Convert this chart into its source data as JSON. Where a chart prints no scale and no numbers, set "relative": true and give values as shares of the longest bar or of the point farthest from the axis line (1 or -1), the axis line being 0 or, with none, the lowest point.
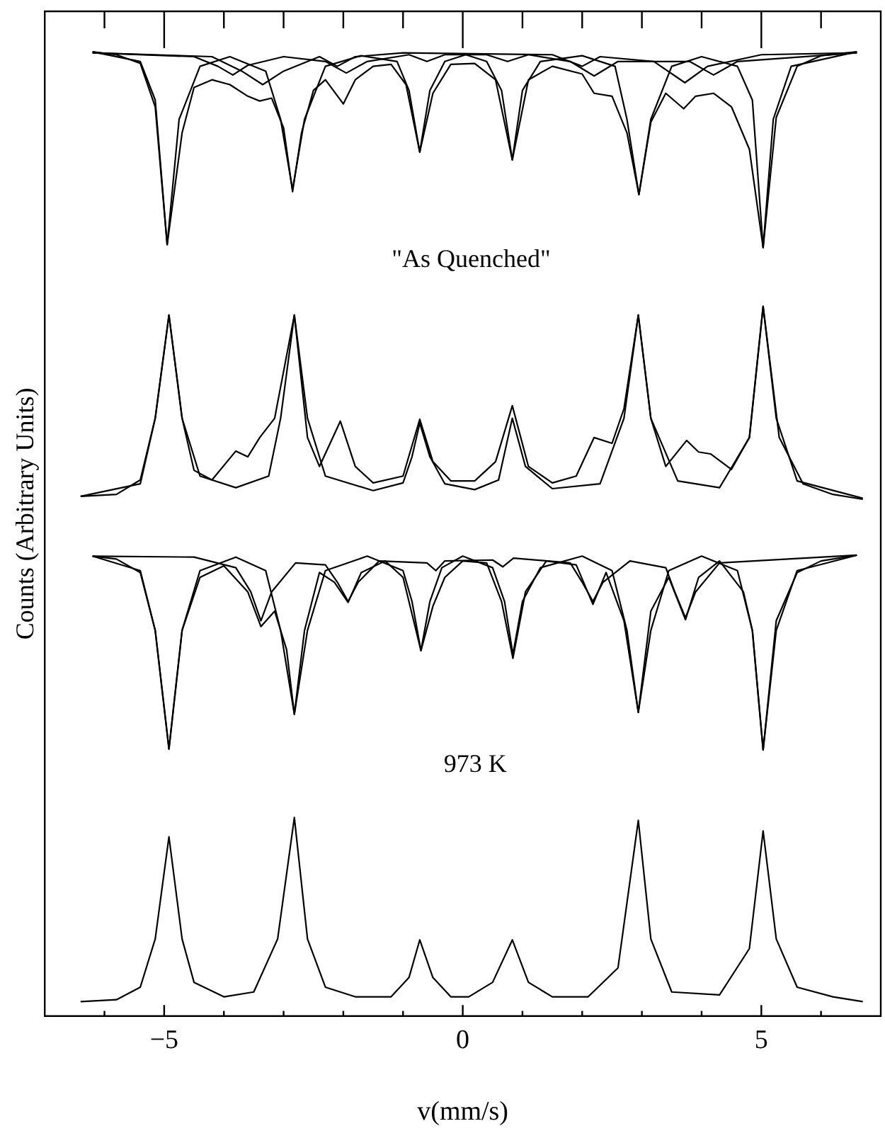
{
  "chart_data": {
    "type": "line",
    "relative": true,
    "xlabel": "v(mm/s)",
    "ylabel": "Counts (Arbitrary Units)",
    "xlim": [
      -7,
      7
    ],
    "xticks": [
      {
        "value": -6,
        "label": null
      },
      -5,
      {
        "value": -4,
        "label": null
      },
      {
        "value": -3,
        "label": null
      },
      {
        "value": -2,
        "label": null
      },
      {
        "value": -1,
        "label": null
      },
      0,
      {
        "value": 1,
        "label": null
      },
      {
        "value": 2,
        "label": null
      },
      {
        "value": 3,
        "label": null
      },
      {
        "value": 4,
        "label": null
      },
      5,
      {
        "value": 6,
        "label": null
      }
    ],
    "grid": false,
    "legend": false,
    "marker": "none",
    "line_style": "solid",
    "annotations": [
      "\"As Quenched\"",
      "973 K"
    ],
    "series": [
      {
        "color": "#000000",
        "x": [
          -6.2,
          -5.8,
          -5.4,
          -5.15,
          -4.95,
          -4.7,
          -4.5,
          -4.2,
          -3.9,
          -3.6,
          -3.4,
          -3.2,
          -3.0,
          -2.85,
          -2.7,
          -2.5,
          -2.3,
          -2.0,
          -1.8,
          -1.5,
          -1.2,
          -0.95,
          -0.72,
          -0.5,
          -0.2,
          0.2,
          0.55,
          0.83,
          1.1,
          1.5,
          2.0,
          2.2,
          2.5,
          2.75,
          2.95,
          3.15,
          3.4,
          3.7,
          3.9,
          4.2,
          4.5,
          4.8,
          5.03,
          5.25,
          5.6,
          6.0,
          6.6
        ],
        "values": [
          1.0,
          0.997,
          0.988,
          0.943,
          0.8,
          0.916,
          0.963,
          0.971,
          0.966,
          0.954,
          0.949,
          0.952,
          0.921,
          0.855,
          0.916,
          0.96,
          0.971,
          0.946,
          0.971,
          0.985,
          0.987,
          0.966,
          0.896,
          0.957,
          0.987,
          0.988,
          0.971,
          0.888,
          0.971,
          0.985,
          0.977,
          0.957,
          0.954,
          0.916,
          0.852,
          0.927,
          0.957,
          0.941,
          0.954,
          0.957,
          0.943,
          0.899,
          0.797,
          0.932,
          0.985,
          0.996,
          1.0
        ]
      },
      {
        "color": "#000000",
        "x": [
          -6.2,
          -5.4,
          -5.15,
          -4.95,
          -4.75,
          -4.4,
          -3.9,
          -3.3,
          -3.05,
          -2.85,
          -2.65,
          -2.3,
          -1.7,
          -1.1,
          -0.9,
          -0.72,
          -0.55,
          -0.3,
          0.05,
          0.4,
          0.65,
          0.83,
          1.0,
          1.3,
          2.0,
          2.55,
          2.75,
          2.95,
          3.15,
          3.5,
          4.0,
          4.6,
          4.85,
          5.03,
          5.2,
          5.5,
          6.6
        ],
        "values": [
          1.0,
          0.99,
          0.95,
          0.8,
          0.93,
          0.985,
          0.995,
          0.98,
          0.93,
          0.857,
          0.93,
          0.985,
          0.996,
          0.99,
          0.96,
          0.896,
          0.96,
          0.99,
          0.997,
          0.99,
          0.96,
          0.888,
          0.96,
          0.99,
          0.996,
          0.985,
          0.93,
          0.852,
          0.93,
          0.985,
          0.995,
          0.985,
          0.95,
          0.797,
          0.93,
          0.985,
          1.0
        ]
      },
      {
        "color": "#000000",
        "x": [
          -6.2,
          -4.5,
          -4.1,
          -3.85,
          -3.6,
          -3.0,
          -2.3,
          -1.95,
          -1.6,
          -0.9,
          -0.6,
          -0.3,
          0.4,
          0.75,
          1.1,
          1.8,
          2.2,
          2.6,
          3.8,
          4.2,
          4.6,
          6.6
        ],
        "values": [
          0.999,
          0.995,
          0.985,
          0.976,
          0.986,
          0.995,
          0.99,
          0.978,
          0.99,
          0.997,
          0.99,
          0.997,
          0.997,
          0.99,
          0.997,
          0.99,
          0.975,
          0.99,
          0.99,
          0.976,
          0.99,
          0.999
        ]
      },
      {
        "color": "#000000",
        "x": [
          -6.2,
          -4.2,
          -3.7,
          -3.35,
          -3.0,
          -2.4,
          -2.1,
          -1.8,
          -1.0,
          1.5,
          2.0,
          2.3,
          3.2,
          3.72,
          4.1,
          5.0,
          6.6
        ],
        "values": [
          0.999,
          0.995,
          0.98,
          0.966,
          0.98,
          0.995,
          0.985,
          0.995,
          0.999,
          0.997,
          0.985,
          0.995,
          0.99,
          0.968,
          0.985,
          0.997,
          0.999
        ]
      },
      {
        "color": "#000000",
        "x": [
          -6.4,
          -5.8,
          -5.4,
          -5.15,
          -4.92,
          -4.7,
          -4.5,
          -4.2,
          -3.8,
          -3.6,
          -3.4,
          -3.15,
          -2.82,
          -2.6,
          -2.4,
          -2.05,
          -1.8,
          -1.5,
          -1.0,
          -0.72,
          -0.5,
          -0.2,
          0.2,
          0.55,
          0.83,
          1.1,
          1.5,
          1.9,
          2.2,
          2.5,
          2.7,
          2.94,
          3.15,
          3.4,
          3.75,
          3.95,
          4.15,
          4.5,
          4.8,
          5.03,
          5.3,
          5.7,
          6.2,
          6.7
        ],
        "values": [
          0.539,
          0.541,
          0.556,
          0.62,
          0.727,
          0.62,
          0.566,
          0.556,
          0.586,
          0.58,
          0.6,
          0.62,
          0.727,
          0.6,
          0.57,
          0.617,
          0.57,
          0.553,
          0.56,
          0.619,
          0.575,
          0.555,
          0.555,
          0.575,
          0.633,
          0.57,
          0.553,
          0.56,
          0.6,
          0.594,
          0.63,
          0.727,
          0.62,
          0.57,
          0.597,
          0.585,
          0.583,
          0.567,
          0.6,
          0.736,
          0.6,
          0.552,
          0.541,
          0.536
        ]
      },
      {
        "color": "#000000",
        "x": [
          -6.4,
          -5.4,
          -5.15,
          -4.92,
          -4.7,
          -4.4,
          -3.8,
          -3.25,
          -3.05,
          -2.82,
          -2.6,
          -2.3,
          -1.5,
          -1.0,
          -0.85,
          -0.72,
          -0.55,
          -0.3,
          0.2,
          0.6,
          0.83,
          1.05,
          1.5,
          2.3,
          2.7,
          2.94,
          3.15,
          3.6,
          4.3,
          4.8,
          5.03,
          5.25,
          5.6,
          6.7
        ],
        "values": [
          0.539,
          0.552,
          0.62,
          0.727,
          0.62,
          0.56,
          0.548,
          0.56,
          0.62,
          0.727,
          0.62,
          0.56,
          0.545,
          0.553,
          0.58,
          0.615,
          0.58,
          0.552,
          0.546,
          0.556,
          0.62,
          0.57,
          0.547,
          0.552,
          0.62,
          0.727,
          0.62,
          0.555,
          0.548,
          0.6,
          0.736,
          0.62,
          0.555,
          0.537
        ]
      },
      {
        "color": "#000000",
        "x": [
          -6.2,
          -5.8,
          -5.4,
          -5.15,
          -4.92,
          -4.7,
          -4.4,
          -4.0,
          -3.6,
          -3.38,
          -3.15,
          -2.95,
          -2.82,
          -2.65,
          -2.4,
          -2.15,
          -1.92,
          -1.7,
          -1.3,
          -1.0,
          -0.7,
          -0.5,
          -0.3,
          0.0,
          0.4,
          0.65,
          0.84,
          1.05,
          1.4,
          1.9,
          2.18,
          2.4,
          2.7,
          2.94,
          3.15,
          3.45,
          3.73,
          3.95,
          4.3,
          4.7,
          4.85,
          5.03,
          5.25,
          5.6,
          6.0,
          6.6
        ],
        "values": [
          0.477,
          0.474,
          0.46,
          0.4,
          0.277,
          0.4,
          0.455,
          0.467,
          0.44,
          0.404,
          0.42,
          0.38,
          0.313,
          0.4,
          0.46,
          0.45,
          0.429,
          0.46,
          0.472,
          0.455,
          0.379,
          0.425,
          0.455,
          0.472,
          0.47,
          0.43,
          0.371,
          0.44,
          0.472,
          0.468,
          0.427,
          0.46,
          0.41,
          0.315,
          0.42,
          0.455,
          0.411,
          0.455,
          0.472,
          0.44,
          0.4,
          0.276,
          0.41,
          0.46,
          0.472,
          0.478
        ]
      },
      {
        "color": "#000000",
        "x": [
          -6.2,
          -5.4,
          -5.15,
          -4.92,
          -4.7,
          -4.4,
          -3.8,
          -3.3,
          -3.05,
          -2.82,
          -2.6,
          -2.3,
          -1.6,
          -1.0,
          -0.85,
          -0.7,
          -0.55,
          -0.35,
          0.0,
          0.5,
          0.7,
          0.84,
          1.0,
          1.3,
          2.0,
          2.5,
          2.75,
          2.94,
          3.15,
          3.45,
          4.0,
          4.6,
          4.85,
          5.03,
          5.25,
          5.6,
          6.6
        ],
        "values": [
          0.477,
          0.462,
          0.4,
          0.277,
          0.4,
          0.462,
          0.476,
          0.462,
          0.4,
          0.313,
          0.4,
          0.462,
          0.477,
          0.462,
          0.43,
          0.379,
          0.43,
          0.465,
          0.477,
          0.465,
          0.43,
          0.375,
          0.43,
          0.465,
          0.477,
          0.462,
          0.4,
          0.315,
          0.4,
          0.462,
          0.477,
          0.462,
          0.4,
          0.276,
          0.4,
          0.462,
          0.478
        ]
      },
      {
        "color": "#000000",
        "x": [
          -6.2,
          -4.5,
          -3.8,
          -3.55,
          -3.38,
          -3.2,
          -2.8,
          -2.3,
          -2.1,
          -1.92,
          -1.75,
          -1.4,
          -0.6,
          -0.45,
          -0.3,
          0.5,
          0.67,
          0.85,
          1.8,
          2.0,
          2.18,
          2.35,
          2.8,
          3.4,
          3.55,
          3.73,
          3.9,
          4.3,
          6.6
        ],
        "values": [
          0.477,
          0.476,
          0.465,
          0.44,
          0.41,
          0.44,
          0.47,
          0.468,
          0.45,
          0.43,
          0.45,
          0.472,
          0.47,
          0.462,
          0.472,
          0.473,
          0.466,
          0.475,
          0.47,
          0.45,
          0.43,
          0.45,
          0.472,
          0.465,
          0.44,
          0.413,
          0.44,
          0.47,
          0.478
        ]
      },
      {
        "color": "#000000",
        "x": [
          -6.4,
          -5.8,
          -5.4,
          -5.15,
          -4.92,
          -4.7,
          -4.5,
          -4.0,
          -3.5,
          -3.1,
          -2.82,
          -2.6,
          -2.3,
          -1.8,
          -1.2,
          -0.9,
          -0.72,
          -0.5,
          -0.2,
          0.1,
          0.5,
          0.83,
          1.1,
          1.5,
          2.1,
          2.6,
          2.94,
          3.15,
          3.5,
          4.3,
          4.8,
          5.03,
          5.25,
          5.6,
          6.2,
          6.7
        ],
        "values": [
          0.015,
          0.017,
          0.03,
          0.08,
          0.186,
          0.08,
          0.035,
          0.02,
          0.025,
          0.08,
          0.206,
          0.08,
          0.03,
          0.02,
          0.02,
          0.04,
          0.079,
          0.04,
          0.02,
          0.02,
          0.035,
          0.079,
          0.035,
          0.02,
          0.02,
          0.05,
          0.203,
          0.08,
          0.025,
          0.022,
          0.07,
          0.192,
          0.08,
          0.03,
          0.02,
          0.015
        ]
      }
    ]
  }
}
